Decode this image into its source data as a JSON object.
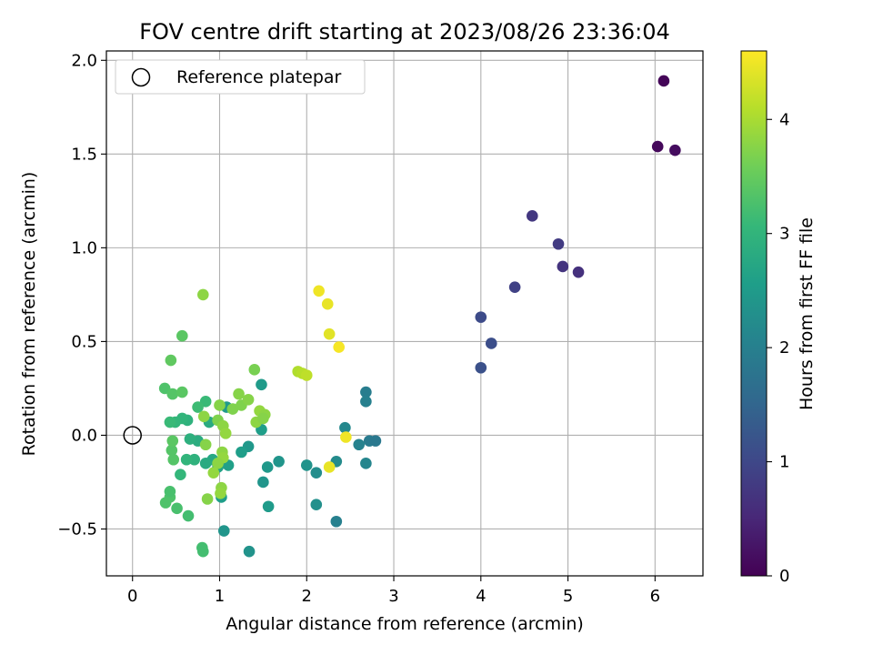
{
  "chart_data": {
    "type": "scatter",
    "title": "FOV centre drift starting at 2023/08/26 23:36:04",
    "xlabel": "Angular distance from reference (arcmin)",
    "ylabel": "Rotation from reference (arcmin)",
    "xlim": [
      -0.3,
      6.55
    ],
    "ylim": [
      -0.75,
      2.05
    ],
    "xticks": [
      0,
      1,
      2,
      3,
      4,
      5,
      6
    ],
    "yticks": [
      -0.5,
      0.0,
      0.5,
      1.0,
      1.5,
      2.0
    ],
    "xtick_labels": [
      "0",
      "1",
      "2",
      "3",
      "4",
      "5",
      "6"
    ],
    "ytick_labels": [
      "−0.5",
      "0.0",
      "0.5",
      "1.0",
      "1.5",
      "2.0"
    ],
    "grid": true,
    "legend": {
      "position": "top-left",
      "entries": [
        "Reference platepar"
      ]
    },
    "reference_point": {
      "x": 0,
      "y": 0
    },
    "colorbar": {
      "label": "Hours from first FF file",
      "colormap": "viridis",
      "range": [
        0,
        4.6
      ],
      "ticks": [
        0,
        1,
        2,
        3,
        4
      ]
    },
    "colormap_stops": [
      "#440154",
      "#482878",
      "#3e4989",
      "#31688e",
      "#26828e",
      "#1f9e89",
      "#35b779",
      "#6ece58",
      "#b5de2b",
      "#fde725"
    ],
    "points": [
      {
        "x": 6.1,
        "y": 1.89,
        "c": 0.05
      },
      {
        "x": 6.03,
        "y": 1.54,
        "c": 0.1
      },
      {
        "x": 6.23,
        "y": 1.52,
        "c": 0.15
      },
      {
        "x": 4.59,
        "y": 1.17,
        "c": 0.75
      },
      {
        "x": 4.89,
        "y": 1.02,
        "c": 0.8
      },
      {
        "x": 4.94,
        "y": 0.9,
        "c": 0.7
      },
      {
        "x": 5.12,
        "y": 0.87,
        "c": 0.65
      },
      {
        "x": 4.39,
        "y": 0.79,
        "c": 0.9
      },
      {
        "x": 4.0,
        "y": 0.63,
        "c": 1.05
      },
      {
        "x": 4.12,
        "y": 0.49,
        "c": 1.1
      },
      {
        "x": 4.0,
        "y": 0.36,
        "c": 1.15
      },
      {
        "x": 2.68,
        "y": 0.23,
        "c": 1.95
      },
      {
        "x": 2.68,
        "y": 0.18,
        "c": 2.0
      },
      {
        "x": 2.72,
        "y": -0.03,
        "c": 1.9
      },
      {
        "x": 2.79,
        "y": -0.03,
        "c": 1.85
      },
      {
        "x": 2.6,
        "y": -0.05,
        "c": 2.05
      },
      {
        "x": 2.68,
        "y": -0.15,
        "c": 2.1
      },
      {
        "x": 2.44,
        "y": 0.04,
        "c": 2.15
      },
      {
        "x": 2.34,
        "y": -0.14,
        "c": 2.2
      },
      {
        "x": 2.34,
        "y": -0.46,
        "c": 2.0
      },
      {
        "x": 2.11,
        "y": -0.2,
        "c": 2.25
      },
      {
        "x": 2.11,
        "y": -0.37,
        "c": 2.3
      },
      {
        "x": 2.0,
        "y": -0.16,
        "c": 2.35
      },
      {
        "x": 1.68,
        "y": -0.14,
        "c": 2.4
      },
      {
        "x": 1.55,
        "y": -0.17,
        "c": 2.45
      },
      {
        "x": 1.5,
        "y": -0.25,
        "c": 2.4
      },
      {
        "x": 1.56,
        "y": -0.38,
        "c": 2.5
      },
      {
        "x": 1.48,
        "y": 0.27,
        "c": 2.5
      },
      {
        "x": 1.48,
        "y": 0.03,
        "c": 2.55
      },
      {
        "x": 1.5,
        "y": 0.11,
        "c": 2.6
      },
      {
        "x": 1.33,
        "y": -0.06,
        "c": 2.45
      },
      {
        "x": 1.25,
        "y": -0.09,
        "c": 2.55
      },
      {
        "x": 1.34,
        "y": -0.62,
        "c": 2.35
      },
      {
        "x": 1.08,
        "y": 0.15,
        "c": 2.5
      },
      {
        "x": 1.05,
        "y": -0.51,
        "c": 2.4
      },
      {
        "x": 1.1,
        "y": -0.16,
        "c": 2.6
      },
      {
        "x": 1.02,
        "y": -0.33,
        "c": 2.55
      },
      {
        "x": 0.98,
        "y": -0.17,
        "c": 2.65
      },
      {
        "x": 0.92,
        "y": -0.13,
        "c": 2.75
      },
      {
        "x": 0.88,
        "y": 0.07,
        "c": 2.8
      },
      {
        "x": 0.84,
        "y": -0.15,
        "c": 2.8
      },
      {
        "x": 0.75,
        "y": -0.03,
        "c": 2.85
      },
      {
        "x": 0.66,
        "y": -0.02,
        "c": 2.9
      },
      {
        "x": 0.71,
        "y": -0.13,
        "c": 2.95
      },
      {
        "x": 0.63,
        "y": 0.08,
        "c": 2.95
      },
      {
        "x": 0.62,
        "y": -0.13,
        "c": 3.0
      },
      {
        "x": 0.57,
        "y": 0.09,
        "c": 3.0
      },
      {
        "x": 0.55,
        "y": -0.21,
        "c": 3.05
      },
      {
        "x": 0.49,
        "y": 0.07,
        "c": 3.05
      },
      {
        "x": 0.43,
        "y": 0.07,
        "c": 3.1
      },
      {
        "x": 0.84,
        "y": 0.18,
        "c": 3.1
      },
      {
        "x": 0.75,
        "y": 0.15,
        "c": 3.15
      },
      {
        "x": 0.8,
        "y": -0.6,
        "c": 3.2
      },
      {
        "x": 0.81,
        "y": -0.62,
        "c": 3.2
      },
      {
        "x": 0.64,
        "y": -0.43,
        "c": 3.2
      },
      {
        "x": 0.51,
        "y": -0.39,
        "c": 3.25
      },
      {
        "x": 0.38,
        "y": -0.36,
        "c": 3.3
      },
      {
        "x": 0.43,
        "y": -0.33,
        "c": 3.3
      },
      {
        "x": 0.43,
        "y": -0.3,
        "c": 3.25
      },
      {
        "x": 0.45,
        "y": -0.08,
        "c": 3.35
      },
      {
        "x": 0.47,
        "y": -0.13,
        "c": 3.35
      },
      {
        "x": 0.46,
        "y": -0.03,
        "c": 3.4
      },
      {
        "x": 0.37,
        "y": 0.25,
        "c": 3.3
      },
      {
        "x": 0.46,
        "y": 0.22,
        "c": 3.35
      },
      {
        "x": 0.57,
        "y": 0.23,
        "c": 3.4
      },
      {
        "x": 0.44,
        "y": 0.4,
        "c": 3.45
      },
      {
        "x": 0.57,
        "y": 0.53,
        "c": 3.4
      },
      {
        "x": 1.4,
        "y": 0.35,
        "c": 3.65
      },
      {
        "x": 1.15,
        "y": 0.14,
        "c": 3.7
      },
      {
        "x": 1.22,
        "y": 0.22,
        "c": 3.75
      },
      {
        "x": 1.25,
        "y": 0.16,
        "c": 3.7
      },
      {
        "x": 1.33,
        "y": 0.19,
        "c": 3.75
      },
      {
        "x": 1.42,
        "y": 0.07,
        "c": 3.8
      },
      {
        "x": 1.46,
        "y": 0.13,
        "c": 3.85
      },
      {
        "x": 1.52,
        "y": 0.11,
        "c": 3.8
      },
      {
        "x": 1.5,
        "y": 0.09,
        "c": 3.75
      },
      {
        "x": 0.98,
        "y": 0.08,
        "c": 3.7
      },
      {
        "x": 1.0,
        "y": 0.16,
        "c": 3.75
      },
      {
        "x": 1.04,
        "y": 0.05,
        "c": 3.8
      },
      {
        "x": 1.07,
        "y": 0.01,
        "c": 3.85
      },
      {
        "x": 0.82,
        "y": 0.1,
        "c": 3.8
      },
      {
        "x": 0.84,
        "y": -0.05,
        "c": 3.75
      },
      {
        "x": 1.03,
        "y": -0.09,
        "c": 3.8
      },
      {
        "x": 1.04,
        "y": -0.12,
        "c": 3.85
      },
      {
        "x": 0.98,
        "y": -0.15,
        "c": 3.8
      },
      {
        "x": 0.93,
        "y": -0.2,
        "c": 3.85
      },
      {
        "x": 1.02,
        "y": -0.28,
        "c": 3.8
      },
      {
        "x": 1.01,
        "y": -0.31,
        "c": 3.85
      },
      {
        "x": 0.86,
        "y": -0.34,
        "c": 3.75
      },
      {
        "x": 0.81,
        "y": 0.75,
        "c": 3.8
      },
      {
        "x": 1.9,
        "y": 0.34,
        "c": 4.05
      },
      {
        "x": 1.95,
        "y": 0.33,
        "c": 4.1
      },
      {
        "x": 2.0,
        "y": 0.32,
        "c": 4.15
      },
      {
        "x": 2.14,
        "y": 0.77,
        "c": 4.5
      },
      {
        "x": 2.24,
        "y": 0.7,
        "c": 4.45
      },
      {
        "x": 2.26,
        "y": 0.54,
        "c": 4.4
      },
      {
        "x": 2.37,
        "y": 0.47,
        "c": 4.55
      },
      {
        "x": 2.45,
        "y": -0.01,
        "c": 4.5
      },
      {
        "x": 2.26,
        "y": -0.17,
        "c": 4.45
      }
    ]
  }
}
